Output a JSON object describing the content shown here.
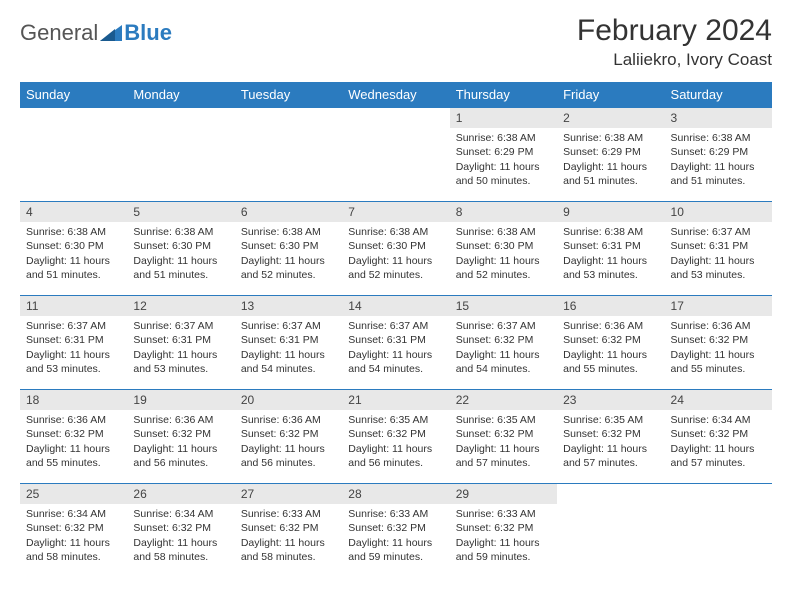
{
  "logo": {
    "general": "General",
    "blue": "Blue"
  },
  "title": "February 2024",
  "location": "Laliiekro, Ivory Coast",
  "colors": {
    "header_bg": "#2b7bbf",
    "header_text": "#ffffff",
    "daynum_bg": "#e8e8e8",
    "cell_border": "#2b7bbf",
    "text": "#333333"
  },
  "weekdays": [
    "Sunday",
    "Monday",
    "Tuesday",
    "Wednesday",
    "Thursday",
    "Friday",
    "Saturday"
  ],
  "layout": {
    "first_weekday_index": 4,
    "days_in_month": 29,
    "rows": 5,
    "cols": 7
  },
  "days": [
    {
      "n": 1,
      "sunrise": "6:38 AM",
      "sunset": "6:29 PM",
      "daylight": "11 hours and 50 minutes."
    },
    {
      "n": 2,
      "sunrise": "6:38 AM",
      "sunset": "6:29 PM",
      "daylight": "11 hours and 51 minutes."
    },
    {
      "n": 3,
      "sunrise": "6:38 AM",
      "sunset": "6:29 PM",
      "daylight": "11 hours and 51 minutes."
    },
    {
      "n": 4,
      "sunrise": "6:38 AM",
      "sunset": "6:30 PM",
      "daylight": "11 hours and 51 minutes."
    },
    {
      "n": 5,
      "sunrise": "6:38 AM",
      "sunset": "6:30 PM",
      "daylight": "11 hours and 51 minutes."
    },
    {
      "n": 6,
      "sunrise": "6:38 AM",
      "sunset": "6:30 PM",
      "daylight": "11 hours and 52 minutes."
    },
    {
      "n": 7,
      "sunrise": "6:38 AM",
      "sunset": "6:30 PM",
      "daylight": "11 hours and 52 minutes."
    },
    {
      "n": 8,
      "sunrise": "6:38 AM",
      "sunset": "6:30 PM",
      "daylight": "11 hours and 52 minutes."
    },
    {
      "n": 9,
      "sunrise": "6:38 AM",
      "sunset": "6:31 PM",
      "daylight": "11 hours and 53 minutes."
    },
    {
      "n": 10,
      "sunrise": "6:37 AM",
      "sunset": "6:31 PM",
      "daylight": "11 hours and 53 minutes."
    },
    {
      "n": 11,
      "sunrise": "6:37 AM",
      "sunset": "6:31 PM",
      "daylight": "11 hours and 53 minutes."
    },
    {
      "n": 12,
      "sunrise": "6:37 AM",
      "sunset": "6:31 PM",
      "daylight": "11 hours and 53 minutes."
    },
    {
      "n": 13,
      "sunrise": "6:37 AM",
      "sunset": "6:31 PM",
      "daylight": "11 hours and 54 minutes."
    },
    {
      "n": 14,
      "sunrise": "6:37 AM",
      "sunset": "6:31 PM",
      "daylight": "11 hours and 54 minutes."
    },
    {
      "n": 15,
      "sunrise": "6:37 AM",
      "sunset": "6:32 PM",
      "daylight": "11 hours and 54 minutes."
    },
    {
      "n": 16,
      "sunrise": "6:36 AM",
      "sunset": "6:32 PM",
      "daylight": "11 hours and 55 minutes."
    },
    {
      "n": 17,
      "sunrise": "6:36 AM",
      "sunset": "6:32 PM",
      "daylight": "11 hours and 55 minutes."
    },
    {
      "n": 18,
      "sunrise": "6:36 AM",
      "sunset": "6:32 PM",
      "daylight": "11 hours and 55 minutes."
    },
    {
      "n": 19,
      "sunrise": "6:36 AM",
      "sunset": "6:32 PM",
      "daylight": "11 hours and 56 minutes."
    },
    {
      "n": 20,
      "sunrise": "6:36 AM",
      "sunset": "6:32 PM",
      "daylight": "11 hours and 56 minutes."
    },
    {
      "n": 21,
      "sunrise": "6:35 AM",
      "sunset": "6:32 PM",
      "daylight": "11 hours and 56 minutes."
    },
    {
      "n": 22,
      "sunrise": "6:35 AM",
      "sunset": "6:32 PM",
      "daylight": "11 hours and 57 minutes."
    },
    {
      "n": 23,
      "sunrise": "6:35 AM",
      "sunset": "6:32 PM",
      "daylight": "11 hours and 57 minutes."
    },
    {
      "n": 24,
      "sunrise": "6:34 AM",
      "sunset": "6:32 PM",
      "daylight": "11 hours and 57 minutes."
    },
    {
      "n": 25,
      "sunrise": "6:34 AM",
      "sunset": "6:32 PM",
      "daylight": "11 hours and 58 minutes."
    },
    {
      "n": 26,
      "sunrise": "6:34 AM",
      "sunset": "6:32 PM",
      "daylight": "11 hours and 58 minutes."
    },
    {
      "n": 27,
      "sunrise": "6:33 AM",
      "sunset": "6:32 PM",
      "daylight": "11 hours and 58 minutes."
    },
    {
      "n": 28,
      "sunrise": "6:33 AM",
      "sunset": "6:32 PM",
      "daylight": "11 hours and 59 minutes."
    },
    {
      "n": 29,
      "sunrise": "6:33 AM",
      "sunset": "6:32 PM",
      "daylight": "11 hours and 59 minutes."
    }
  ],
  "labels": {
    "sunrise": "Sunrise:",
    "sunset": "Sunset:",
    "daylight": "Daylight:"
  }
}
